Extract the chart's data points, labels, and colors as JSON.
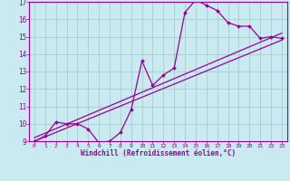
{
  "title": "",
  "xlabel": "Windchill (Refroidissement éolien,°C)",
  "ylabel": "",
  "bg_color": "#c8eaf0",
  "grid_color": "#aacccc",
  "line_color": "#990099",
  "xlim": [
    -0.5,
    23.5
  ],
  "ylim": [
    9,
    17
  ],
  "xticks": [
    0,
    1,
    2,
    3,
    4,
    5,
    6,
    7,
    8,
    9,
    10,
    11,
    12,
    13,
    14,
    15,
    16,
    17,
    18,
    19,
    20,
    21,
    22,
    23
  ],
  "yticks": [
    9,
    10,
    11,
    12,
    13,
    14,
    15,
    16,
    17
  ],
  "main_x": [
    0,
    1,
    2,
    3,
    4,
    5,
    6,
    7,
    8,
    9,
    10,
    11,
    12,
    13,
    14,
    15,
    16,
    17,
    18,
    19,
    20,
    21,
    22,
    23
  ],
  "main_y": [
    9.0,
    9.3,
    10.1,
    10.0,
    10.0,
    9.7,
    8.9,
    9.0,
    9.5,
    10.8,
    13.6,
    12.2,
    12.8,
    13.2,
    16.4,
    17.1,
    16.8,
    16.5,
    15.8,
    15.6,
    15.6,
    14.9,
    15.0,
    14.9
  ],
  "line2_x": [
    0,
    23
  ],
  "line2_y": [
    9.0,
    14.8
  ],
  "line3_x": [
    0,
    23
  ],
  "line3_y": [
    9.2,
    15.2
  ]
}
